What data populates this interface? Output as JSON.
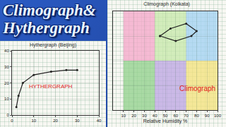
{
  "header": {
    "lines": [
      "Climograph&",
      "Hythergraph"
    ]
  },
  "chart_data": [
    {
      "type": "line",
      "title": "Hythergraph (Beijing)",
      "x": [
        2,
        3,
        5,
        10,
        18,
        25,
        30
      ],
      "values": [
        5,
        12,
        20,
        25,
        27,
        28,
        28
      ],
      "color": "#222222",
      "marker": "circle",
      "line_style": "solid",
      "xlim": [
        0,
        40
      ],
      "ylim": [
        0,
        40
      ],
      "xticks": [
        0,
        10,
        20,
        30,
        40
      ],
      "yticks": [
        0,
        10,
        20,
        30,
        40
      ],
      "grid": true,
      "annotations": [
        {
          "text": "HYTHERGRAPH",
          "color": "#e0201b"
        }
      ]
    },
    {
      "type": "line",
      "title": "Climograph (Kolkata)",
      "x_label": "Relative Humidity %",
      "x": [
        45,
        55,
        70,
        80,
        75,
        60,
        45
      ],
      "values": [
        30,
        33,
        35,
        32,
        30,
        28,
        30
      ],
      "color": "#222222",
      "marker": "circle",
      "line_style": "solid",
      "xlim": [
        0,
        100
      ],
      "ylim": [
        0,
        40
      ],
      "xticks": [
        10,
        20,
        30,
        40,
        50,
        60,
        70,
        80,
        90,
        100
      ],
      "yticks": [
        0,
        10,
        20,
        30,
        40
      ],
      "tick_labels": "x",
      "grid": true,
      "zones": [
        {
          "x": [
            10,
            40
          ],
          "y": [
            20,
            40
          ],
          "color": "#f4a6c8"
        },
        {
          "x": [
            40,
            70
          ],
          "y": [
            20,
            40
          ],
          "color": "#c6e8a8"
        },
        {
          "x": [
            70,
            100
          ],
          "y": [
            20,
            40
          ],
          "color": "#9fd0f2"
        },
        {
          "x": [
            10,
            40
          ],
          "y": [
            0,
            20
          ],
          "color": "#8fd08a"
        },
        {
          "x": [
            40,
            70
          ],
          "y": [
            0,
            20
          ],
          "color": "#bba4e2"
        },
        {
          "x": [
            70,
            100
          ],
          "y": [
            0,
            20
          ],
          "color": "#f3e27a"
        }
      ],
      "annotations": [
        {
          "text": "Climograph",
          "color": "#e0201b"
        }
      ]
    }
  ]
}
